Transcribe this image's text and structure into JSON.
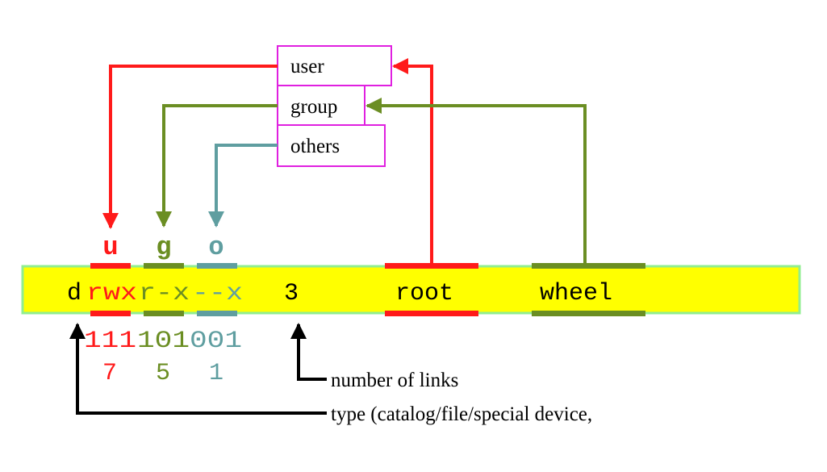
{
  "colors": {
    "user": "#ff1a1a",
    "group": "#6b8e23",
    "others": "#5f9ea0",
    "box_border": "#e020e0",
    "bar_fill": "#ffff00",
    "bar_border": "#90ee90",
    "text": "#000000"
  },
  "boxes": {
    "user": "user",
    "group": "group",
    "others": "others"
  },
  "letters": {
    "u": "u",
    "g": "g",
    "o": "o"
  },
  "listing": {
    "type": "d",
    "user_perm": "rwx",
    "group_perm": "r-x",
    "others_perm": "--x",
    "links": "3",
    "owner": "root",
    "group": "wheel"
  },
  "binary": {
    "user": "111",
    "group": "101",
    "others": "001"
  },
  "octal": {
    "user": "7",
    "group": "5",
    "others": "1"
  },
  "labels": {
    "links": "number of links",
    "type": "type (catalog/file/special device,"
  }
}
